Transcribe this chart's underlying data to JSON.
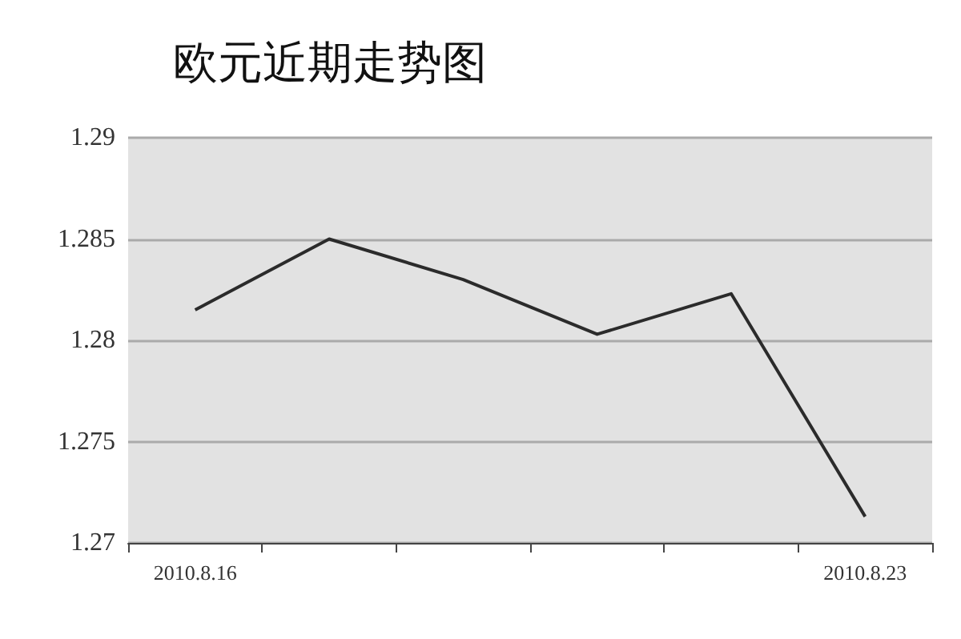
{
  "chart_data": {
    "type": "line",
    "title": "欧元近期走势图",
    "categories": [
      "2010.8.16",
      null,
      null,
      null,
      null,
      "2010.8.23"
    ],
    "series": [
      {
        "color": "#2b2b2b",
        "values": [
          1.2815,
          1.285,
          1.283,
          1.2803,
          1.2823,
          1.2713
        ]
      }
    ],
    "ylim": [
      1.27,
      1.29
    ],
    "yticks": [
      1.27,
      1.275,
      1.28,
      1.285,
      1.29
    ],
    "grid": "y",
    "marker": "none",
    "line_style": "solid"
  }
}
